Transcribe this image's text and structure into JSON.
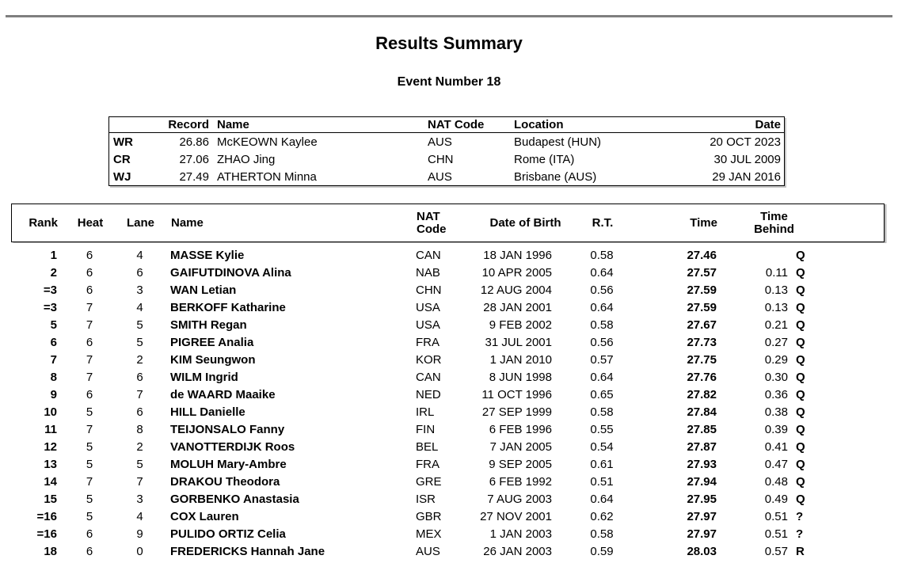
{
  "page": {
    "title": "Results Summary",
    "subtitle": "Event Number 18"
  },
  "colors": {
    "top_rule": "#7f7f7f",
    "table_border": "#000000",
    "text": "#000000",
    "background": "#ffffff"
  },
  "records": {
    "headers": {
      "record": "Record",
      "name": "Name",
      "nat": "NAT Code",
      "location": "Location",
      "date": "Date"
    },
    "rows": [
      {
        "label": "WR",
        "record": "26.86",
        "name": "McKEOWN Kaylee",
        "nat": "AUS",
        "location": "Budapest (HUN)",
        "date": "20 OCT 2023"
      },
      {
        "label": "CR",
        "record": "27.06",
        "name": "ZHAO Jing",
        "nat": "CHN",
        "location": "Rome (ITA)",
        "date": "30 JUL 2009"
      },
      {
        "label": "WJ",
        "record": "27.49",
        "name": "ATHERTON Minna",
        "nat": "AUS",
        "location": "Brisbane (AUS)",
        "date": "29 JAN 2016"
      }
    ]
  },
  "results": {
    "headers": {
      "rank": "Rank",
      "heat": "Heat",
      "lane": "Lane",
      "name": "Name",
      "nat": "NAT Code",
      "dob": "Date of Birth",
      "rt": "R.T.",
      "time": "Time",
      "behind": "Time Behind"
    },
    "rows": [
      {
        "rank": "1",
        "heat": "6",
        "lane": "4",
        "name": "MASSE Kylie",
        "nat": "CAN",
        "dob": "18 JAN 1996",
        "rt": "0.58",
        "time": "27.46",
        "behind": "",
        "qual": "Q"
      },
      {
        "rank": "2",
        "heat": "6",
        "lane": "6",
        "name": "GAIFUTDINOVA Alina",
        "nat": "NAB",
        "dob": "10 APR 2005",
        "rt": "0.64",
        "time": "27.57",
        "behind": "0.11",
        "qual": "Q"
      },
      {
        "rank": "=3",
        "heat": "6",
        "lane": "3",
        "name": "WAN Letian",
        "nat": "CHN",
        "dob": "12 AUG 2004",
        "rt": "0.56",
        "time": "27.59",
        "behind": "0.13",
        "qual": "Q"
      },
      {
        "rank": "=3",
        "heat": "7",
        "lane": "4",
        "name": "BERKOFF Katharine",
        "nat": "USA",
        "dob": "28 JAN 2001",
        "rt": "0.64",
        "time": "27.59",
        "behind": "0.13",
        "qual": "Q"
      },
      {
        "rank": "5",
        "heat": "7",
        "lane": "5",
        "name": "SMITH Regan",
        "nat": "USA",
        "dob": "9 FEB 2002",
        "rt": "0.58",
        "time": "27.67",
        "behind": "0.21",
        "qual": "Q"
      },
      {
        "rank": "6",
        "heat": "6",
        "lane": "5",
        "name": "PIGREE Analia",
        "nat": "FRA",
        "dob": "31 JUL 2001",
        "rt": "0.56",
        "time": "27.73",
        "behind": "0.27",
        "qual": "Q"
      },
      {
        "rank": "7",
        "heat": "7",
        "lane": "2",
        "name": "KIM Seungwon",
        "nat": "KOR",
        "dob": "1 JAN 2010",
        "rt": "0.57",
        "time": "27.75",
        "behind": "0.29",
        "qual": "Q"
      },
      {
        "rank": "8",
        "heat": "7",
        "lane": "6",
        "name": "WILM Ingrid",
        "nat": "CAN",
        "dob": "8 JUN 1998",
        "rt": "0.64",
        "time": "27.76",
        "behind": "0.30",
        "qual": "Q"
      },
      {
        "rank": "9",
        "heat": "6",
        "lane": "7",
        "name": "de WAARD Maaike",
        "nat": "NED",
        "dob": "11 OCT 1996",
        "rt": "0.65",
        "time": "27.82",
        "behind": "0.36",
        "qual": "Q"
      },
      {
        "rank": "10",
        "heat": "5",
        "lane": "6",
        "name": "HILL Danielle",
        "nat": "IRL",
        "dob": "27 SEP 1999",
        "rt": "0.58",
        "time": "27.84",
        "behind": "0.38",
        "qual": "Q"
      },
      {
        "rank": "11",
        "heat": "7",
        "lane": "8",
        "name": "TEIJONSALO Fanny",
        "nat": "FIN",
        "dob": "6 FEB 1996",
        "rt": "0.55",
        "time": "27.85",
        "behind": "0.39",
        "qual": "Q"
      },
      {
        "rank": "12",
        "heat": "5",
        "lane": "2",
        "name": "VANOTTERDIJK Roos",
        "nat": "BEL",
        "dob": "7 JAN 2005",
        "rt": "0.54",
        "time": "27.87",
        "behind": "0.41",
        "qual": "Q"
      },
      {
        "rank": "13",
        "heat": "5",
        "lane": "5",
        "name": "MOLUH Mary-Ambre",
        "nat": "FRA",
        "dob": "9 SEP 2005",
        "rt": "0.61",
        "time": "27.93",
        "behind": "0.47",
        "qual": "Q"
      },
      {
        "rank": "14",
        "heat": "7",
        "lane": "7",
        "name": "DRAKOU Theodora",
        "nat": "GRE",
        "dob": "6 FEB 1992",
        "rt": "0.51",
        "time": "27.94",
        "behind": "0.48",
        "qual": "Q"
      },
      {
        "rank": "15",
        "heat": "5",
        "lane": "3",
        "name": "GORBENKO Anastasia",
        "nat": "ISR",
        "dob": "7 AUG 2003",
        "rt": "0.64",
        "time": "27.95",
        "behind": "0.49",
        "qual": "Q"
      },
      {
        "rank": "=16",
        "heat": "5",
        "lane": "4",
        "name": "COX Lauren",
        "nat": "GBR",
        "dob": "27 NOV 2001",
        "rt": "0.62",
        "time": "27.97",
        "behind": "0.51",
        "qual": "?"
      },
      {
        "rank": "=16",
        "heat": "6",
        "lane": "9",
        "name": "PULIDO ORTIZ Celia",
        "nat": "MEX",
        "dob": "1 JAN 2003",
        "rt": "0.58",
        "time": "27.97",
        "behind": "0.51",
        "qual": "?"
      },
      {
        "rank": "18",
        "heat": "6",
        "lane": "0",
        "name": "FREDERICKS Hannah Jane",
        "nat": "AUS",
        "dob": "26 JAN 2003",
        "rt": "0.59",
        "time": "28.03",
        "behind": "0.57",
        "qual": "R"
      }
    ]
  }
}
